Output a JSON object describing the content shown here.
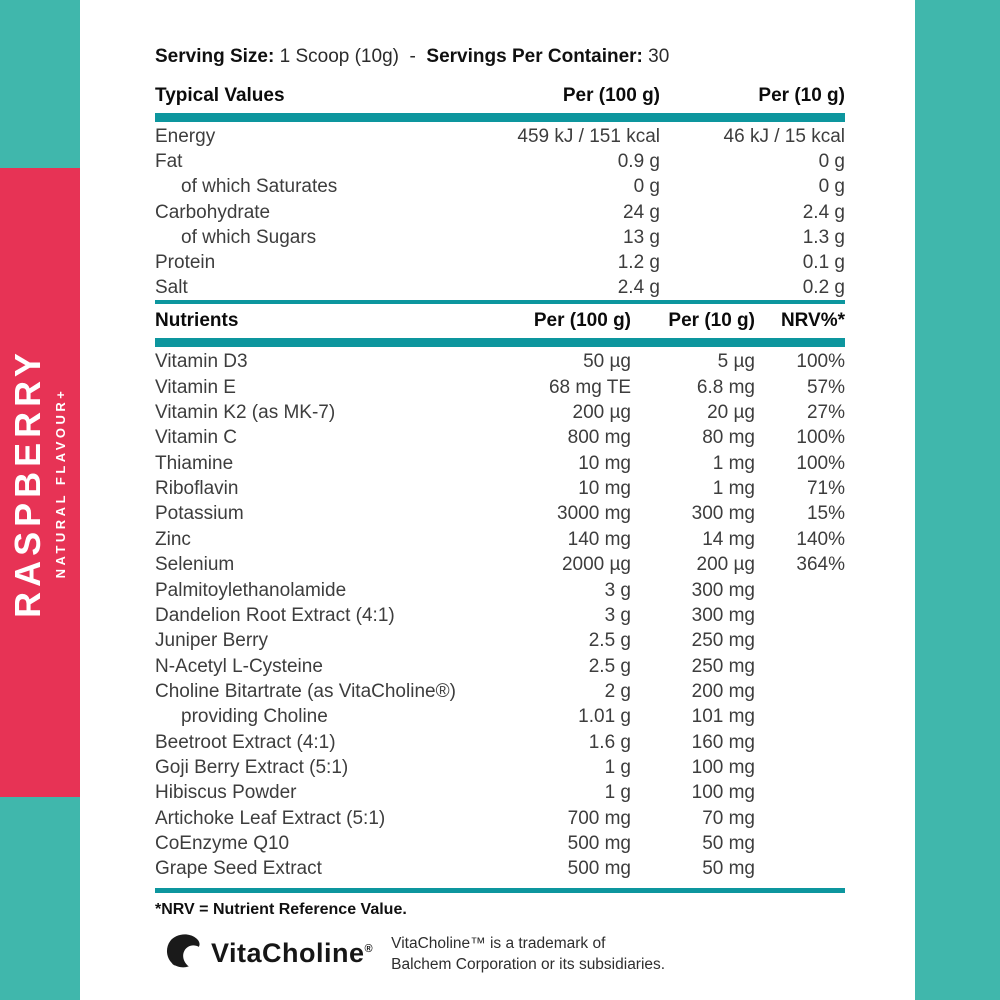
{
  "banner": {
    "title": "RASPBERRY",
    "subtitle": "NATURAL FLAVOUR+"
  },
  "serving": {
    "label1": "Serving Size:",
    "value1": "1 Scoop (10g)",
    "separator": "-",
    "label2": "Servings Per Container:",
    "value2": "30"
  },
  "typical": {
    "header": {
      "col1": "Typical Values",
      "col2": "Per (100 g)",
      "col3": "Per (10 g)"
    },
    "rows": [
      {
        "name": "Energy",
        "per100": "459 kJ / 151 kcal",
        "per10": "46 kJ / 15 kcal",
        "indent": false
      },
      {
        "name": "Fat",
        "per100": "0.9 g",
        "per10": "0 g",
        "indent": false
      },
      {
        "name": "of which Saturates",
        "per100": "0 g",
        "per10": "0 g",
        "indent": true
      },
      {
        "name": "Carbohydrate",
        "per100": "24 g",
        "per10": "2.4 g",
        "indent": false
      },
      {
        "name": "of which Sugars",
        "per100": "13 g",
        "per10": "1.3 g",
        "indent": true
      },
      {
        "name": "Protein",
        "per100": "1.2 g",
        "per10": "0.1 g",
        "indent": false
      },
      {
        "name": "Salt",
        "per100": "2.4 g",
        "per10": "0.2 g",
        "indent": false
      }
    ]
  },
  "nutrients": {
    "header": {
      "col1": "Nutrients",
      "col2": "Per (100 g)",
      "col3": "Per (10 g)",
      "col4": "NRV%*"
    },
    "rows": [
      {
        "name": "Vitamin D3",
        "per100": "50 µg",
        "per10": "5 µg",
        "nrv": "100%",
        "indent": false
      },
      {
        "name": "Vitamin E",
        "per100": "68 mg TE",
        "per10": "6.8 mg",
        "nrv": "57%",
        "indent": false
      },
      {
        "name": "Vitamin K2 (as MK-7)",
        "per100": "200 µg",
        "per10": "20 µg",
        "nrv": "27%",
        "indent": false
      },
      {
        "name": "Vitamin C",
        "per100": "800 mg",
        "per10": "80 mg",
        "nrv": "100%",
        "indent": false
      },
      {
        "name": "Thiamine",
        "per100": "10 mg",
        "per10": "1 mg",
        "nrv": "100%",
        "indent": false
      },
      {
        "name": "Riboflavin",
        "per100": "10 mg",
        "per10": "1 mg",
        "nrv": "71%",
        "indent": false
      },
      {
        "name": "Potassium",
        "per100": "3000 mg",
        "per10": "300 mg",
        "nrv": "15%",
        "indent": false
      },
      {
        "name": "Zinc",
        "per100": "140 mg",
        "per10": "14 mg",
        "nrv": "140%",
        "indent": false
      },
      {
        "name": "Selenium",
        "per100": "2000 µg",
        "per10": "200 µg",
        "nrv": "364%",
        "indent": false
      },
      {
        "name": "Palmitoylethanolamide",
        "per100": "3 g",
        "per10": "300 mg",
        "nrv": "",
        "indent": false
      },
      {
        "name": "Dandelion Root Extract (4:1)",
        "per100": "3 g",
        "per10": "300 mg",
        "nrv": "",
        "indent": false
      },
      {
        "name": "Juniper Berry",
        "per100": "2.5 g",
        "per10": "250 mg",
        "nrv": "",
        "indent": false
      },
      {
        "name": "N-Acetyl L-Cysteine",
        "per100": "2.5 g",
        "per10": "250 mg",
        "nrv": "",
        "indent": false
      },
      {
        "name": "Choline Bitartrate (as VitaCholine®)",
        "per100": "2 g",
        "per10": "200 mg",
        "nrv": "",
        "indent": false
      },
      {
        "name": "providing Choline",
        "per100": "1.01 g",
        "per10": "101 mg",
        "nrv": "",
        "indent": true
      },
      {
        "name": "Beetroot Extract (4:1)",
        "per100": "1.6 g",
        "per10": "160 mg",
        "nrv": "",
        "indent": false
      },
      {
        "name": "Goji Berry Extract (5:1)",
        "per100": "1 g",
        "per10": "100 mg",
        "nrv": "",
        "indent": false
      },
      {
        "name": "Hibiscus Powder",
        "per100": "1 g",
        "per10": "100 mg",
        "nrv": "",
        "indent": false
      },
      {
        "name": "Artichoke Leaf Extract (5:1)",
        "per100": "700 mg",
        "per10": "70 mg",
        "nrv": "",
        "indent": false
      },
      {
        "name": "CoEnzyme Q10",
        "per100": "500 mg",
        "per10": "50 mg",
        "nrv": "",
        "indent": false
      },
      {
        "name": "Grape Seed Extract",
        "per100": "500 mg",
        "per10": "50 mg",
        "nrv": "",
        "indent": false
      }
    ]
  },
  "footnote": "*NRV = Nutrient Reference Value.",
  "footer": {
    "logo_text": "VitaCholine",
    "logo_reg": "®",
    "trademark_line1": "VitaCholine™ is a trademark of",
    "trademark_line2": "Balchem Corporation or its subsidiaries."
  },
  "colors": {
    "teal_strip": "#40B7AC",
    "pink_banner": "#E73355",
    "rule_teal": "#0D969E"
  }
}
